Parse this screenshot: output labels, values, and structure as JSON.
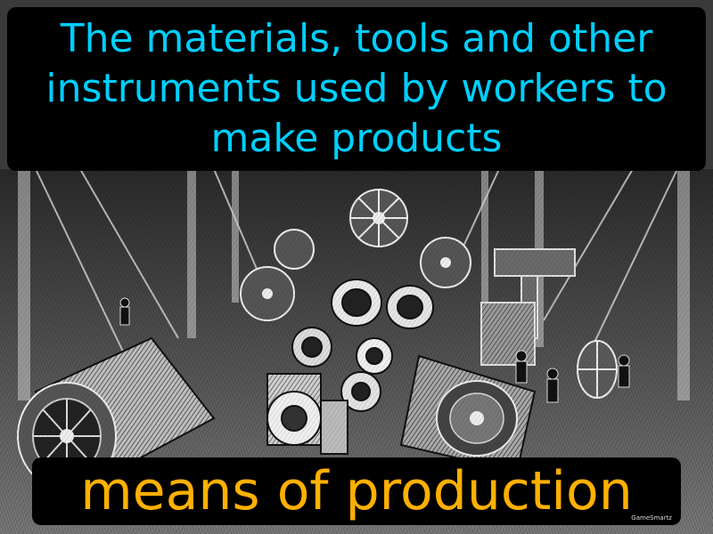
{
  "definition": "The materials, tools and other instruments used by workers to make products",
  "term": "means of production",
  "watermark": "GameSmartz",
  "colors": {
    "definition_text": "#00cfff",
    "term_text": "#ffb000",
    "box_background": "#000000"
  },
  "illustration": {
    "icon": "factory-machinery-engraving"
  }
}
